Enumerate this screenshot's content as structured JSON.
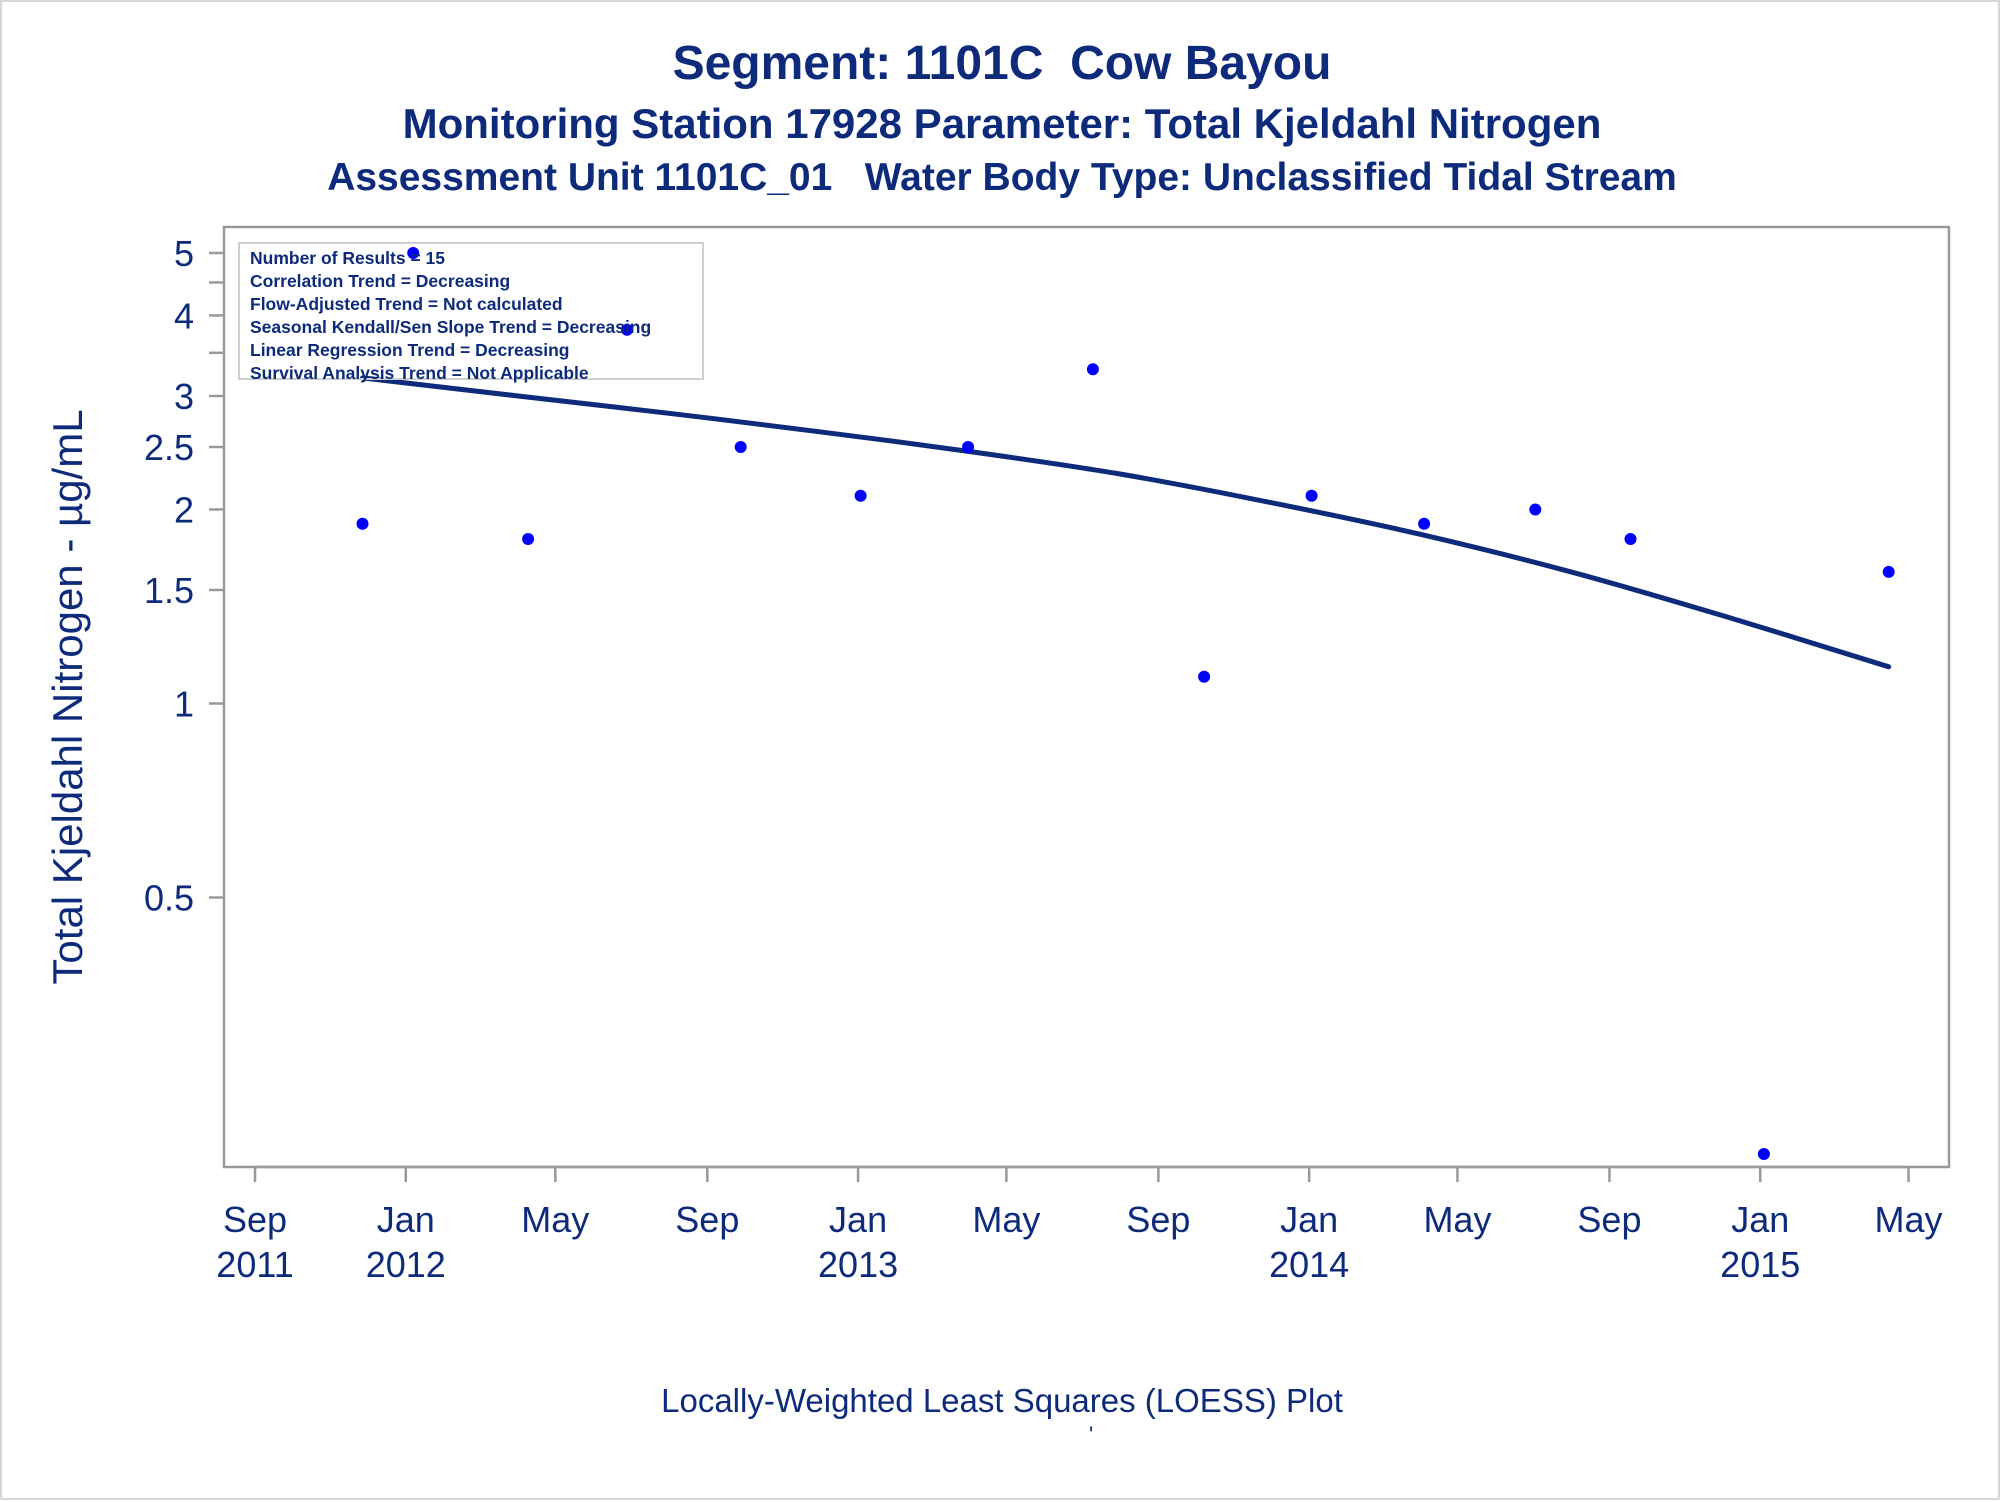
{
  "title": "Segment: 1101C  Cow Bayou",
  "subtitle1": "Monitoring Station 17928 Parameter: Total Kjeldahl Nitrogen",
  "subtitle2": "Assessment Unit 1101C_01   Water Body Type: Unclassified Tidal Stream",
  "footer": "Locally-Weighted Least Squares (LOESS) Plot",
  "footer_mark": "'",
  "stats": [
    "Number of Results = 15",
    "Correlation Trend = Decreasing",
    "Flow-Adjusted Trend = Not calculated",
    "Seasonal Kendall/Sen Slope Trend = Decreasing",
    "Linear Regression Trend = Decreasing",
    "Survival Analysis Trend = Not Applicable"
  ],
  "colors": {
    "text": "#0d2b7a",
    "points": "#0000ff",
    "trend_line": "#0d2b7a",
    "frame": "#999999"
  },
  "chart_data": {
    "type": "scatter",
    "title": "Segment: 1101C  Cow Bayou",
    "xlabel": "",
    "ylabel": "Total Kjeldahl Nitrogen -  µg/mL",
    "y_scale": "log",
    "xlim": [
      "2011-08-15",
      "2015-05-20"
    ],
    "ylim": [
      0.2,
      5.2
    ],
    "x_ticks": [
      {
        "date": "2011-09-01",
        "label": [
          "Sep",
          "2011"
        ]
      },
      {
        "date": "2012-01-01",
        "label": [
          "Jan",
          "2012"
        ]
      },
      {
        "date": "2012-05-01",
        "label": [
          "May",
          ""
        ]
      },
      {
        "date": "2012-09-01",
        "label": [
          "Sep",
          ""
        ]
      },
      {
        "date": "2013-01-01",
        "label": [
          "Jan",
          "2013"
        ]
      },
      {
        "date": "2013-05-01",
        "label": [
          "May",
          ""
        ]
      },
      {
        "date": "2013-09-01",
        "label": [
          "Sep",
          ""
        ]
      },
      {
        "date": "2014-01-01",
        "label": [
          "Jan",
          "2014"
        ]
      },
      {
        "date": "2014-05-01",
        "label": [
          "May",
          ""
        ]
      },
      {
        "date": "2014-09-01",
        "label": [
          "Sep",
          ""
        ]
      },
      {
        "date": "2015-01-01",
        "label": [
          "Jan",
          "2015"
        ]
      },
      {
        "date": "2015-05-01",
        "label": [
          "May",
          ""
        ]
      }
    ],
    "y_ticks": [
      {
        "value": 5,
        "label": "5"
      },
      {
        "value": 4.5,
        "label": ""
      },
      {
        "value": 4,
        "label": "4"
      },
      {
        "value": 3.5,
        "label": ""
      },
      {
        "value": 3,
        "label": "3"
      },
      {
        "value": 2.5,
        "label": "2.5"
      },
      {
        "value": 2,
        "label": "2"
      },
      {
        "value": 1.5,
        "label": "1.5"
      },
      {
        "value": 1,
        "label": "1"
      },
      {
        "value": 0.5,
        "label": "0.5"
      }
    ],
    "legend": "top-left",
    "grid": false,
    "series": [
      {
        "type": "scatter",
        "points": [
          {
            "x": "2011-11-27",
            "y": 1.9
          },
          {
            "x": "2012-01-07",
            "y": 5.0
          },
          {
            "x": "2012-04-09",
            "y": 1.8
          },
          {
            "x": "2012-06-28",
            "y": 3.8
          },
          {
            "x": "2012-09-28",
            "y": 2.5
          },
          {
            "x": "2013-01-03",
            "y": 2.1
          },
          {
            "x": "2013-03-31",
            "y": 2.5
          },
          {
            "x": "2013-07-10",
            "y": 3.3
          },
          {
            "x": "2013-10-08",
            "y": 1.1
          },
          {
            "x": "2014-01-03",
            "y": 2.1
          },
          {
            "x": "2014-04-04",
            "y": 1.9
          },
          {
            "x": "2014-07-03",
            "y": 2.0
          },
          {
            "x": "2014-09-18",
            "y": 1.8
          },
          {
            "x": "2015-01-04",
            "y": 0.2
          },
          {
            "x": "2015-04-15",
            "y": 1.6
          }
        ]
      },
      {
        "type": "line",
        "points": [
          {
            "x": "2011-11-27",
            "y": 3.2
          },
          {
            "x": "2012-04-01",
            "y": 3.0
          },
          {
            "x": "2012-08-01",
            "y": 2.82
          },
          {
            "x": "2012-12-01",
            "y": 2.64
          },
          {
            "x": "2013-04-01",
            "y": 2.46
          },
          {
            "x": "2013-08-01",
            "y": 2.27
          },
          {
            "x": "2013-12-01",
            "y": 2.05
          },
          {
            "x": "2014-04-01",
            "y": 1.83
          },
          {
            "x": "2014-08-01",
            "y": 1.6
          },
          {
            "x": "2014-12-01",
            "y": 1.37
          },
          {
            "x": "2015-04-15",
            "y": 1.14
          }
        ]
      }
    ]
  }
}
